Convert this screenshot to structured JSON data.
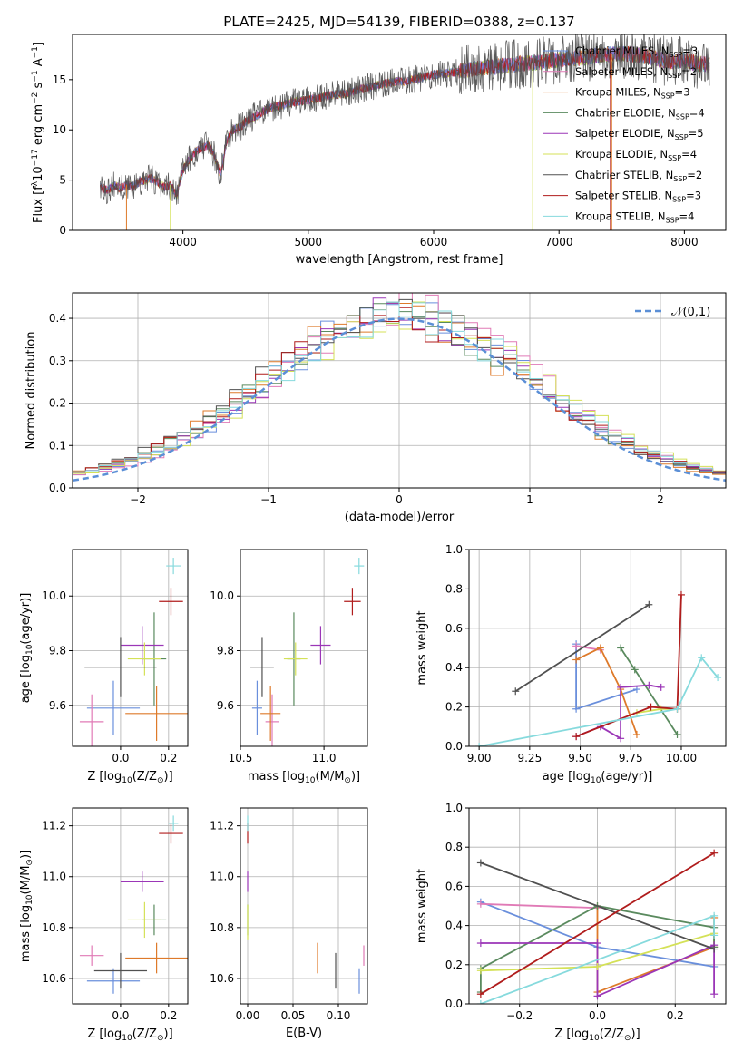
{
  "figure_title": "PLATE=2425, MJD=54139, FIBERID=0388, z=0.137",
  "models": [
    {
      "name": "Chabrier MILES",
      "nssp": "3",
      "color": "#6a8fdc"
    },
    {
      "name": "Salpeter MILES",
      "nssp": "2",
      "color": "#e07ab6"
    },
    {
      "name": "Kroupa MILES",
      "nssp": "3",
      "color": "#de7a2a"
    },
    {
      "name": "Chabrier ELODIE",
      "nssp": "4",
      "color": "#5a8a5e"
    },
    {
      "name": "Salpeter ELODIE",
      "nssp": "5",
      "color": "#9b36b7"
    },
    {
      "name": "Kroupa ELODIE",
      "nssp": "4",
      "color": "#d4e157"
    },
    {
      "name": "Chabrier STELIB",
      "nssp": "2",
      "color": "#505050"
    },
    {
      "name": "Salpeter STELIB",
      "nssp": "3",
      "color": "#b01c1c"
    },
    {
      "name": "Kroupa STELIB",
      "nssp": "4",
      "color": "#86dadd"
    }
  ],
  "chart_data": [
    {
      "id": "spectrum",
      "type": "line",
      "title": "",
      "xlabel": "wavelength [Angstrom, rest frame]",
      "ylabel_parts": [
        "Flux [f",
        "λ",
        "10",
        "−17",
        " erg cm",
        "−2",
        " s",
        "−1",
        " A",
        "−1",
        "]"
      ],
      "xlim": [
        3120,
        8330
      ],
      "ylim": [
        0,
        19.5
      ],
      "xticks": [
        4000,
        5000,
        6000,
        7000,
        8000
      ],
      "yticks": [
        0,
        5,
        10,
        15
      ],
      "grid": false,
      "legend": "right",
      "shape_wl": [
        3340,
        3400,
        3450,
        3500,
        3550,
        3600,
        3650,
        3700,
        3750,
        3800,
        3850,
        3900,
        3950,
        4000,
        4050,
        4100,
        4150,
        4200,
        4250,
        4300,
        4350,
        4400,
        4450,
        4500,
        4600,
        4700,
        4800,
        4900,
        5000,
        5100,
        5200,
        5300,
        5400,
        5500,
        5600,
        5700,
        5800,
        5900,
        6000,
        6100,
        6200,
        6300,
        6400,
        6500,
        6600,
        6700,
        6800,
        6900,
        7000,
        7100,
        7200,
        7300,
        7400,
        7500,
        7600,
        7700,
        7800,
        7900,
        8000,
        8100,
        8200
      ],
      "shape_flux": [
        4.3,
        4.0,
        4.5,
        4.2,
        4.5,
        4.4,
        4.8,
        5.0,
        5.2,
        4.8,
        4.3,
        4.5,
        3.5,
        6.0,
        7.0,
        7.8,
        8.2,
        8.5,
        7.5,
        5.5,
        9.0,
        10.0,
        10.2,
        10.8,
        11.5,
        12.2,
        12.5,
        12.8,
        13.0,
        13.2,
        13.5,
        13.6,
        14.0,
        14.3,
        14.6,
        14.8,
        14.9,
        15.2,
        15.5,
        15.6,
        15.8,
        16.0,
        16.2,
        16.3,
        16.4,
        16.6,
        16.7,
        16.8,
        17.0,
        17.1,
        17.2,
        17.4,
        17.5,
        17.6,
        17.5,
        17.3,
        17.0,
        16.8,
        17.0,
        16.6,
        16.5
      ]
    },
    {
      "id": "residuals",
      "type": "line",
      "title": "",
      "xlabel": "(data-model)/error",
      "ylabel": "Normed distribution",
      "xlim": [
        -2.5,
        2.5
      ],
      "ylim": [
        0,
        0.46
      ],
      "xticks": [
        -2,
        -1,
        0,
        1,
        2
      ],
      "xtick_labels": [
        "−2",
        "−1",
        "0",
        "1",
        "2"
      ],
      "yticks": [
        0,
        0.1,
        0.2,
        0.3,
        0.4
      ],
      "ytick_labels": [
        "0.0",
        "0.1",
        "0.2",
        "0.3",
        "0.4"
      ],
      "grid": true,
      "legend": "top-right",
      "reference": {
        "name": "𝒩(0,1)",
        "mean": 0,
        "sigma": 1,
        "color": "#5b8fd6"
      },
      "bin_width": 0.1
    },
    {
      "id": "age_vs_Z",
      "type": "scatter",
      "title": "",
      "xlabel_parts": [
        "Z [log",
        "10",
        "(Z/Z",
        "⊙",
        ")]"
      ],
      "ylabel_parts": [
        "age  [log",
        "10",
        "(age/yr)]"
      ],
      "xlim": [
        -0.2,
        0.28
      ],
      "ylim": [
        9.45,
        10.17
      ],
      "xticks": [
        0.0,
        0.2
      ],
      "xtick_labels": [
        "0.0",
        "0.2"
      ],
      "yticks": [
        9.6,
        9.8,
        10.0
      ],
      "ytick_labels": [
        "9.6",
        "9.8",
        "10.0"
      ],
      "grid": true,
      "points": [
        {
          "model": 0,
          "x": -0.03,
          "y": 9.59,
          "xerr": 0.11,
          "yerr": 0.1
        },
        {
          "model": 1,
          "x": -0.12,
          "y": 9.54,
          "xerr": 0.05,
          "yerr": 0.1
        },
        {
          "model": 2,
          "x": 0.15,
          "y": 9.57,
          "xerr": 0.13,
          "yerr": 0.1
        },
        {
          "model": 3,
          "x": 0.14,
          "y": 9.77,
          "xerr": 0.05,
          "yerr": 0.17
        },
        {
          "model": 4,
          "x": 0.09,
          "y": 9.82,
          "xerr": 0.09,
          "yerr": 0.07
        },
        {
          "model": 5,
          "x": 0.1,
          "y": 9.77,
          "xerr": 0.07,
          "yerr": 0.06
        },
        {
          "model": 6,
          "x": 0.0,
          "y": 9.74,
          "xerr": 0.15,
          "yerr": 0.11
        },
        {
          "model": 7,
          "x": 0.21,
          "y": 9.98,
          "xerr": 0.05,
          "yerr": 0.05
        },
        {
          "model": 8,
          "x": 0.22,
          "y": 10.11,
          "xerr": 0.03,
          "yerr": 0.03
        }
      ]
    },
    {
      "id": "age_vs_mass",
      "type": "scatter",
      "title": "",
      "xlabel_parts": [
        "mass [log",
        "10",
        "(M/M",
        "⊙",
        ")]"
      ],
      "ylabel_parts": [],
      "xlim": [
        10.5,
        11.26
      ],
      "ylim": [
        9.45,
        10.17
      ],
      "xticks": [
        10.5,
        11.0
      ],
      "xtick_labels": [
        "10.5",
        "11.0"
      ],
      "yticks": [
        9.6,
        9.8,
        10.0
      ],
      "ytick_labels": [
        "9.6",
        "9.8",
        "10.0"
      ],
      "grid": true,
      "points": [
        {
          "model": 0,
          "x": 10.6,
          "y": 9.59,
          "xerr": 0.03,
          "yerr": 0.1
        },
        {
          "model": 1,
          "x": 10.69,
          "y": 9.54,
          "xerr": 0.04,
          "yerr": 0.1
        },
        {
          "model": 2,
          "x": 10.68,
          "y": 9.57,
          "xerr": 0.06,
          "yerr": 0.1
        },
        {
          "model": 3,
          "x": 10.82,
          "y": 9.77,
          "xerr": 0.04,
          "yerr": 0.17
        },
        {
          "model": 4,
          "x": 10.98,
          "y": 9.82,
          "xerr": 0.06,
          "yerr": 0.07
        },
        {
          "model": 5,
          "x": 10.83,
          "y": 9.77,
          "xerr": 0.07,
          "yerr": 0.06
        },
        {
          "model": 6,
          "x": 10.63,
          "y": 9.74,
          "xerr": 0.07,
          "yerr": 0.11
        },
        {
          "model": 7,
          "x": 11.17,
          "y": 9.98,
          "xerr": 0.05,
          "yerr": 0.05
        },
        {
          "model": 8,
          "x": 11.21,
          "y": 10.11,
          "xerr": 0.03,
          "yerr": 0.03
        }
      ]
    },
    {
      "id": "massweight_vs_age",
      "type": "line",
      "title": "",
      "xlabel_parts": [
        "age  [log",
        "10",
        "(age/yr)]"
      ],
      "ylabel": "mass weight",
      "xlim": [
        8.95,
        10.22
      ],
      "ylim": [
        0,
        1
      ],
      "xticks": [
        9.0,
        9.25,
        9.5,
        9.75,
        10.0
      ],
      "xtick_labels": [
        "9.00",
        "9.25",
        "9.50",
        "9.75",
        "10.00"
      ],
      "yticks": [
        0,
        0.2,
        0.4,
        0.6,
        0.8,
        1.0
      ],
      "ytick_labels": [
        "0.0",
        "0.2",
        "0.4",
        "0.6",
        "0.8",
        "1.0"
      ],
      "grid": true,
      "series": [
        {
          "model": 0,
          "x": [
            9.48,
            9.48,
            9.78
          ],
          "y": [
            0.52,
            0.19,
            0.29
          ]
        },
        {
          "model": 1,
          "x": [
            9.48,
            9.6
          ],
          "y": [
            0.51,
            0.49
          ]
        },
        {
          "model": 2,
          "x": [
            9.48,
            9.6,
            9.7,
            9.78
          ],
          "y": [
            0.44,
            0.5,
            0.29,
            0.06
          ]
        },
        {
          "model": 3,
          "x": [
            9.7,
            9.77,
            9.98
          ],
          "y": [
            0.5,
            0.39,
            0.06
          ]
        },
        {
          "model": 4,
          "x": [
            9.48,
            9.6,
            9.7,
            9.7,
            9.84,
            9.9
          ],
          "y": [
            0.05,
            0.1,
            0.04,
            0.3,
            0.31,
            0.3
          ]
        },
        {
          "model": 5,
          "x": [
            9.78,
            9.9,
            9.98
          ],
          "y": [
            0.17,
            0.19,
            0.19
          ]
        },
        {
          "model": 6,
          "x": [
            9.18,
            9.84
          ],
          "y": [
            0.28,
            0.72
          ]
        },
        {
          "model": 7,
          "x": [
            9.48,
            9.85,
            9.98,
            10.0
          ],
          "y": [
            0.05,
            0.2,
            0.19,
            0.77
          ]
        },
        {
          "model": 8,
          "x": [
            9.0,
            9.98,
            10.1,
            10.18
          ],
          "y": [
            0.0,
            0.19,
            0.45,
            0.35
          ]
        }
      ]
    },
    {
      "id": "mass_vs_Z",
      "type": "scatter",
      "title": "",
      "xlabel_parts": [
        "Z [log",
        "10",
        "(Z/Z",
        "⊙",
        ")]"
      ],
      "ylabel_parts": [
        "mass [log",
        "10",
        "(M/M",
        "⊙",
        ")]"
      ],
      "xlim": [
        -0.2,
        0.28
      ],
      "ylim": [
        10.5,
        11.27
      ],
      "xticks": [
        0.0,
        0.2
      ],
      "xtick_labels": [
        "0.0",
        "0.2"
      ],
      "yticks": [
        10.6,
        10.8,
        11.0,
        11.2
      ],
      "ytick_labels": [
        "10.6",
        "10.8",
        "11.0",
        "11.2"
      ],
      "grid": true,
      "points": [
        {
          "model": 0,
          "x": -0.03,
          "y": 10.59,
          "xerr": 0.11,
          "yerr": 0.05
        },
        {
          "model": 1,
          "x": -0.12,
          "y": 10.69,
          "xerr": 0.05,
          "yerr": 0.04
        },
        {
          "model": 2,
          "x": 0.15,
          "y": 10.68,
          "xerr": 0.13,
          "yerr": 0.06
        },
        {
          "model": 3,
          "x": 0.14,
          "y": 10.83,
          "xerr": 0.05,
          "yerr": 0.06
        },
        {
          "model": 4,
          "x": 0.09,
          "y": 10.98,
          "xerr": 0.09,
          "yerr": 0.04
        },
        {
          "model": 5,
          "x": 0.1,
          "y": 10.83,
          "xerr": 0.07,
          "yerr": 0.07
        },
        {
          "model": 6,
          "x": 0.0,
          "y": 10.63,
          "xerr": 0.11,
          "yerr": 0.07
        },
        {
          "model": 7,
          "x": 0.21,
          "y": 11.17,
          "xerr": 0.05,
          "yerr": 0.04
        },
        {
          "model": 8,
          "x": 0.22,
          "y": 11.21,
          "xerr": 0.02,
          "yerr": 0.03
        }
      ]
    },
    {
      "id": "mass_vs_EBV",
      "type": "scatter",
      "title": "",
      "xlabel": "E(B-V)",
      "ylabel_parts": [],
      "xlim": [
        -0.008,
        0.132
      ],
      "ylim": [
        10.5,
        11.27
      ],
      "xticks": [
        0.0,
        0.05,
        0.1
      ],
      "xtick_labels": [
        "0.00",
        "0.05",
        "0.10"
      ],
      "yticks": [
        10.6,
        10.8,
        11.0,
        11.2
      ],
      "ytick_labels": [
        "10.6",
        "10.8",
        "11.0",
        "11.2"
      ],
      "grid": true,
      "points": [
        {
          "model": 0,
          "x": 0.123,
          "y": 10.59,
          "xerr": 0.0,
          "yerr": 0.05
        },
        {
          "model": 1,
          "x": 0.128,
          "y": 10.69,
          "xerr": 0.0,
          "yerr": 0.04
        },
        {
          "model": 2,
          "x": 0.077,
          "y": 10.68,
          "xerr": 0.0,
          "yerr": 0.06
        },
        {
          "model": 3,
          "x": 0.0,
          "y": 10.83,
          "xerr": 0.0,
          "yerr": 0.06
        },
        {
          "model": 4,
          "x": 0.0,
          "y": 10.98,
          "xerr": 0.0,
          "yerr": 0.04
        },
        {
          "model": 5,
          "x": 0.0,
          "y": 10.82,
          "xerr": 0.0,
          "yerr": 0.07
        },
        {
          "model": 6,
          "x": 0.097,
          "y": 10.63,
          "xerr": 0.0,
          "yerr": 0.07
        },
        {
          "model": 7,
          "x": 0.0,
          "y": 11.17,
          "xerr": 0.0,
          "yerr": 0.04
        },
        {
          "model": 8,
          "x": 0.0,
          "y": 11.21,
          "xerr": 0.0,
          "yerr": 0.03
        }
      ]
    },
    {
      "id": "massweight_vs_Z",
      "type": "line",
      "title": "",
      "xlabel_parts": [
        "Z [log",
        "10",
        "(Z/Z",
        "⊙",
        ")]"
      ],
      "ylabel": "mass weight",
      "xlim": [
        -0.33,
        0.33
      ],
      "ylim": [
        0,
        1
      ],
      "xticks": [
        -0.2,
        0.0,
        0.2
      ],
      "xtick_labels": [
        "−0.2",
        "0.0",
        "0.2"
      ],
      "yticks": [
        0,
        0.2,
        0.4,
        0.6,
        0.8,
        1.0
      ],
      "ytick_labels": [
        "0.0",
        "0.2",
        "0.4",
        "0.6",
        "0.8",
        "1.0"
      ],
      "grid": true,
      "series": [
        {
          "model": 0,
          "x": [
            -0.3,
            0.0,
            0.3
          ],
          "y": [
            0.52,
            0.29,
            0.19
          ]
        },
        {
          "model": 1,
          "x": [
            -0.3,
            0.0
          ],
          "y": [
            0.51,
            0.49
          ]
        },
        {
          "model": 2,
          "x": [
            0.0,
            0.0,
            0.3,
            0.3
          ],
          "y": [
            0.5,
            0.06,
            0.29,
            0.44
          ]
        },
        {
          "model": 3,
          "x": [
            -0.3,
            -0.3,
            0.0,
            0.3,
            0.3
          ],
          "y": [
            0.06,
            0.18,
            0.5,
            0.39,
            0.29
          ]
        },
        {
          "model": 4,
          "x": [
            -0.3,
            0.0,
            0.0,
            0.3,
            0.3
          ],
          "y": [
            0.31,
            0.31,
            0.04,
            0.3,
            0.05
          ]
        },
        {
          "model": 5,
          "x": [
            -0.3,
            0.0,
            0.0,
            0.3
          ],
          "y": [
            0.17,
            0.19,
            0.19,
            0.36
          ]
        },
        {
          "model": 6,
          "x": [
            -0.3,
            0.3
          ],
          "y": [
            0.72,
            0.28
          ]
        },
        {
          "model": 7,
          "x": [
            -0.3,
            0.3
          ],
          "y": [
            0.05,
            0.77
          ]
        },
        {
          "model": 8,
          "x": [
            -0.3,
            0.3,
            0.3
          ],
          "y": [
            0.0,
            0.45,
            0.35
          ]
        }
      ]
    }
  ]
}
